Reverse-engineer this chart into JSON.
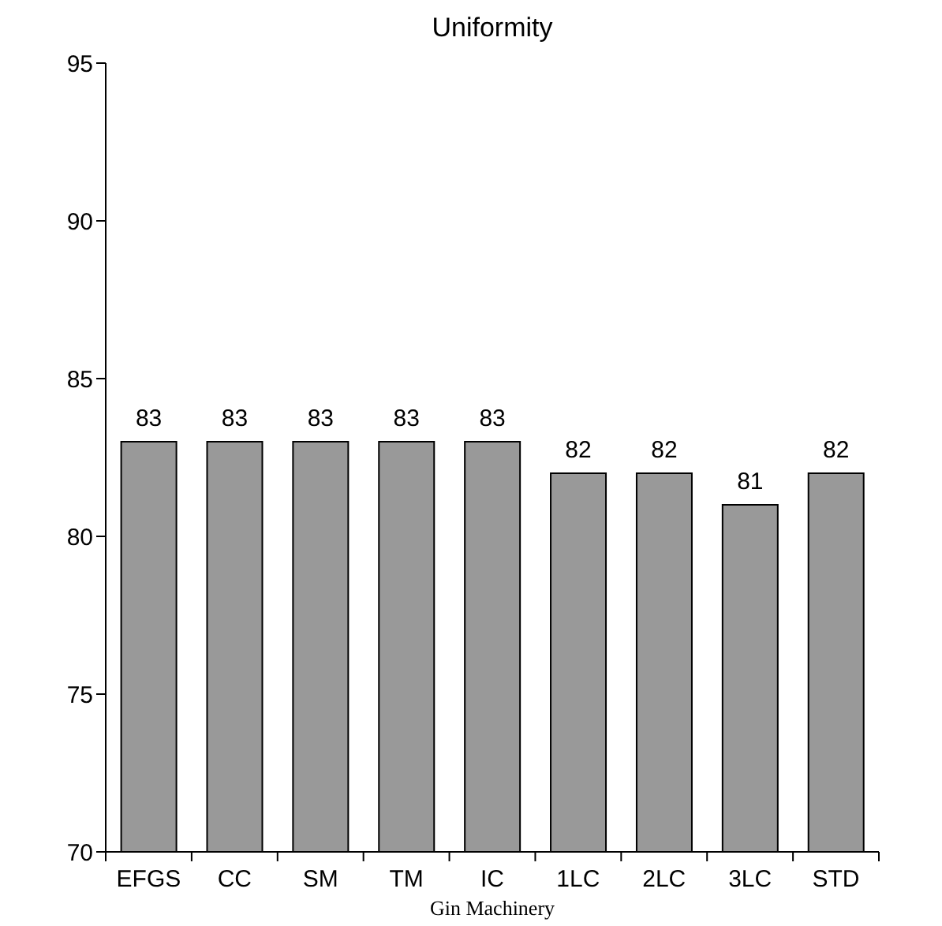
{
  "chart_data": {
    "type": "bar",
    "title": "Uniformity",
    "xlabel": "Gin Machinery",
    "categories": [
      "EFGS",
      "CC",
      "SM",
      "TM",
      "IC",
      "1LC",
      "2LC",
      "3LC",
      "STD"
    ],
    "values": [
      83,
      83,
      83,
      83,
      83,
      82,
      82,
      81,
      82
    ],
    "color": "#999999",
    "ylim": [
      70,
      95
    ],
    "yticks": [
      70,
      75,
      80,
      85,
      90,
      95
    ],
    "data_labels": true,
    "grid": false
  }
}
